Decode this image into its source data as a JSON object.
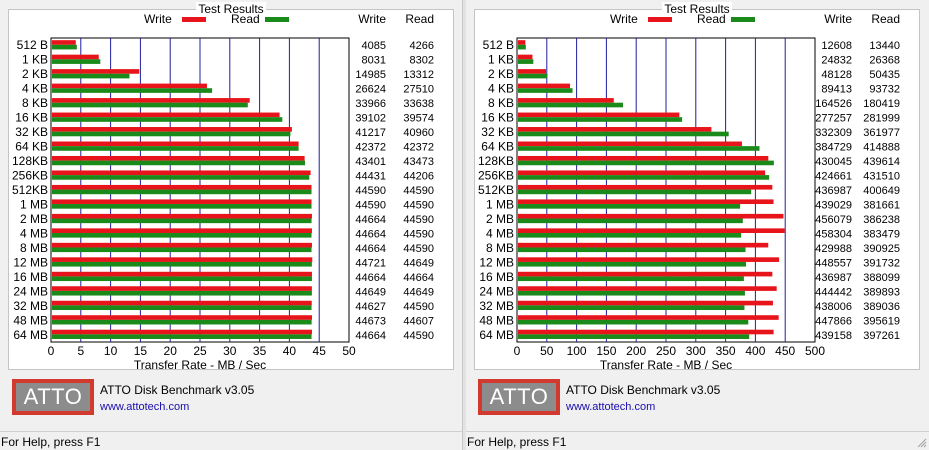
{
  "windows": [
    {
      "group_title": "Test Results",
      "legend": {
        "write": "Write",
        "read": "Read"
      },
      "columns": {
        "write": "Write",
        "read": "Read"
      },
      "logo_text": "ATTO",
      "product": "ATTO Disk Benchmark v3.05",
      "website": "www.attotech.com",
      "status": "For Help, press F1"
    },
    {
      "group_title": "Test Results",
      "legend": {
        "write": "Write",
        "read": "Read"
      },
      "columns": {
        "write": "Write",
        "read": "Read"
      },
      "logo_text": "ATTO",
      "product": "ATTO Disk Benchmark v3.05",
      "website": "www.attotech.com",
      "status": "For Help, press F1"
    }
  ],
  "colors": {
    "write": "#e8141b",
    "read": "#1a8a1a",
    "grid": "#2020a0",
    "border": "#000000"
  },
  "chart_data": [
    {
      "type": "bar",
      "orientation": "horizontal",
      "title": "Test Results",
      "xlabel": "Transfer Rate - MB / Sec",
      "xlim": [
        0,
        50
      ],
      "xticks": [
        0,
        5,
        10,
        15,
        20,
        25,
        30,
        35,
        40,
        45,
        50
      ],
      "categories": [
        "512 B",
        "1 KB",
        "2 KB",
        "4 KB",
        "8 KB",
        "16 KB",
        "32 KB",
        "64 KB",
        "128KB",
        "256KB",
        "512KB",
        "1 MB",
        "2 MB",
        "4 MB",
        "8 MB",
        "12 MB",
        "16 MB",
        "24 MB",
        "32 MB",
        "48 MB",
        "64 MB"
      ],
      "series": [
        {
          "name": "Write",
          "values": [
            4085,
            8031,
            14985,
            26624,
            33966,
            39102,
            41217,
            42372,
            43401,
            44431,
            44590,
            44590,
            44664,
            44664,
            44664,
            44721,
            44664,
            44649,
            44627,
            44673,
            44664
          ]
        },
        {
          "name": "Read",
          "values": [
            4266,
            8302,
            13312,
            27510,
            33638,
            39574,
            40960,
            42372,
            43473,
            44206,
            44590,
            44590,
            44590,
            44590,
            44590,
            44649,
            44664,
            44649,
            44590,
            44607,
            44590
          ]
        }
      ]
    },
    {
      "type": "bar",
      "orientation": "horizontal",
      "title": "Test Results",
      "xlabel": "Transfer Rate - MB / Sec",
      "xlim": [
        0,
        500
      ],
      "xticks": [
        0,
        50,
        100,
        150,
        200,
        250,
        300,
        350,
        400,
        450,
        500
      ],
      "categories": [
        "512 B",
        "1 KB",
        "2 KB",
        "4 KB",
        "8 KB",
        "16 KB",
        "32 KB",
        "64 KB",
        "128KB",
        "256KB",
        "512KB",
        "1 MB",
        "2 MB",
        "4 MB",
        "8 MB",
        "12 MB",
        "16 MB",
        "24 MB",
        "32 MB",
        "48 MB",
        "64 MB"
      ],
      "series": [
        {
          "name": "Write",
          "values": [
            12608,
            24832,
            48128,
            89413,
            164526,
            277257,
            332309,
            384729,
            430045,
            424661,
            436987,
            439029,
            456079,
            458304,
            429988,
            448557,
            436987,
            444442,
            438006,
            447866,
            439158
          ]
        },
        {
          "name": "Read",
          "values": [
            13440,
            26368,
            50435,
            93732,
            180419,
            281999,
            361977,
            414888,
            439614,
            431510,
            400649,
            381661,
            386238,
            383479,
            390925,
            391732,
            388099,
            389893,
            389036,
            395619,
            397261
          ]
        }
      ]
    }
  ]
}
